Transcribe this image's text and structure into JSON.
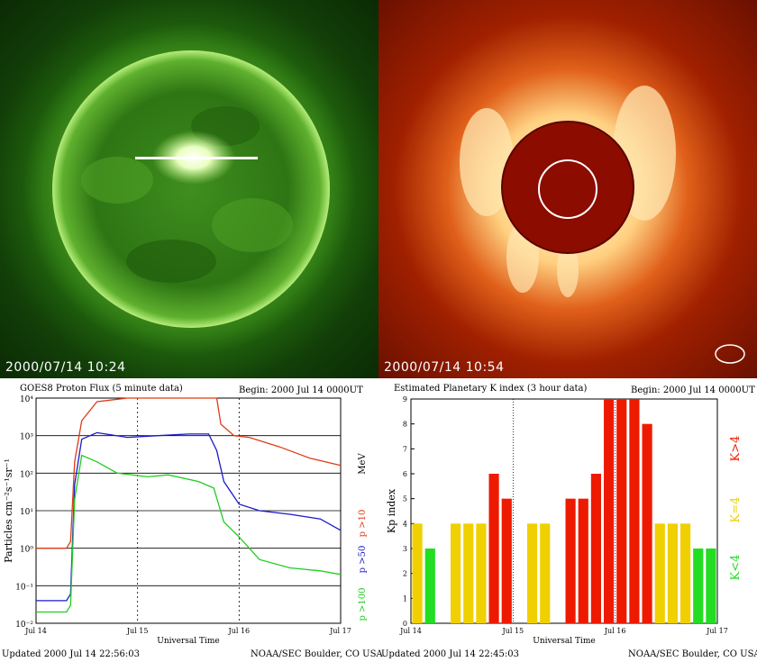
{
  "images": {
    "eit": {
      "timestamp": "2000/07/14  10:24"
    },
    "lasco": {
      "timestamp": "2000/07/14  10:54"
    }
  },
  "colors": {
    "proton_p10": "#e03a16",
    "proton_p50": "#1a1ac8",
    "proton_p100": "#22cc22",
    "kp_low": "#22dd22",
    "kp_mid": "#f0d000",
    "kp_high": "#ee1a00"
  },
  "chart_data": [
    {
      "type": "line",
      "title": "GOES8 Proton Flux (5 minute data)",
      "begin_label": "Begin:  2000 Jul 14 0000UT",
      "ylabel": "Particles cm⁻²s⁻¹sr⁻¹",
      "xlabel": "Universal Time",
      "units_label": "MeV",
      "y_scale": "log",
      "ylim": [
        0.01,
        10000
      ],
      "y_ticks": [
        "10⁻²",
        "10⁻¹",
        "10⁰",
        "10¹",
        "10²",
        "10³",
        "10⁴"
      ],
      "x_ticks": [
        "Jul 14",
        "Jul 15",
        "Jul 16",
        "Jul 17"
      ],
      "x_range_days": [
        0,
        3
      ],
      "grid": true,
      "legend_position": "right",
      "series": [
        {
          "name": "p >10",
          "color_key": "proton_p10",
          "points": [
            [
              0,
              1.0
            ],
            [
              0.3,
              1.0
            ],
            [
              0.34,
              1.5
            ],
            [
              0.38,
              200
            ],
            [
              0.45,
              2500
            ],
            [
              0.6,
              8000
            ],
            [
              0.9,
              10000
            ],
            [
              1.5,
              10000
            ],
            [
              1.75,
              10000
            ],
            [
              1.78,
              10000
            ],
            [
              1.82,
              2000
            ],
            [
              1.95,
              1000
            ],
            [
              2.1,
              900
            ],
            [
              2.4,
              500
            ],
            [
              2.7,
              250
            ],
            [
              3.0,
              160
            ]
          ]
        },
        {
          "name": "p >50",
          "color_key": "proton_p50",
          "points": [
            [
              0,
              0.04
            ],
            [
              0.3,
              0.04
            ],
            [
              0.34,
              0.06
            ],
            [
              0.38,
              50
            ],
            [
              0.45,
              800
            ],
            [
              0.6,
              1200
            ],
            [
              0.9,
              900
            ],
            [
              1.2,
              1000
            ],
            [
              1.5,
              1100
            ],
            [
              1.7,
              1100
            ],
            [
              1.78,
              400
            ],
            [
              1.85,
              60
            ],
            [
              2.0,
              15
            ],
            [
              2.2,
              10
            ],
            [
              2.5,
              8
            ],
            [
              2.8,
              6
            ],
            [
              3.0,
              3
            ]
          ]
        },
        {
          "name": "p >100",
          "color_key": "proton_p100",
          "points": [
            [
              0,
              0.02
            ],
            [
              0.3,
              0.02
            ],
            [
              0.34,
              0.03
            ],
            [
              0.38,
              20
            ],
            [
              0.45,
              300
            ],
            [
              0.6,
              200
            ],
            [
              0.8,
              100
            ],
            [
              1.1,
              80
            ],
            [
              1.3,
              90
            ],
            [
              1.6,
              60
            ],
            [
              1.75,
              40
            ],
            [
              1.85,
              5
            ],
            [
              2.0,
              2
            ],
            [
              2.2,
              0.5
            ],
            [
              2.5,
              0.3
            ],
            [
              2.8,
              0.25
            ],
            [
              3.0,
              0.2
            ]
          ]
        }
      ],
      "footer_left": "Updated 2000 Jul 14 22:56:03",
      "footer_right": "NOAA/SEC Boulder, CO USA"
    },
    {
      "type": "bar",
      "title": "Estimated Planetary K index (3 hour data)",
      "begin_label": "Begin:  2000 Jul 14 0000UT",
      "ylabel": "Kp index",
      "xlabel": "Universal Time",
      "ylim": [
        0,
        9
      ],
      "y_ticks": [
        "0",
        "1",
        "2",
        "3",
        "4",
        "5",
        "6",
        "7",
        "8",
        "9"
      ],
      "x_ticks": [
        "Jul 14",
        "Jul 15",
        "Jul 16",
        "Jul 17"
      ],
      "grid": false,
      "legend": [
        "K<4",
        "K=4",
        "K>4"
      ],
      "legend_position": "right",
      "values": [
        4,
        3,
        null,
        4,
        4,
        4,
        6,
        5,
        null,
        4,
        4,
        null,
        5,
        5,
        6,
        9,
        9,
        9,
        8,
        4,
        4,
        4,
        3,
        3
      ],
      "footer_left": "Updated 2000 Jul 14 22:45:03",
      "footer_right": "NOAA/SEC Boulder, CO USA"
    }
  ]
}
